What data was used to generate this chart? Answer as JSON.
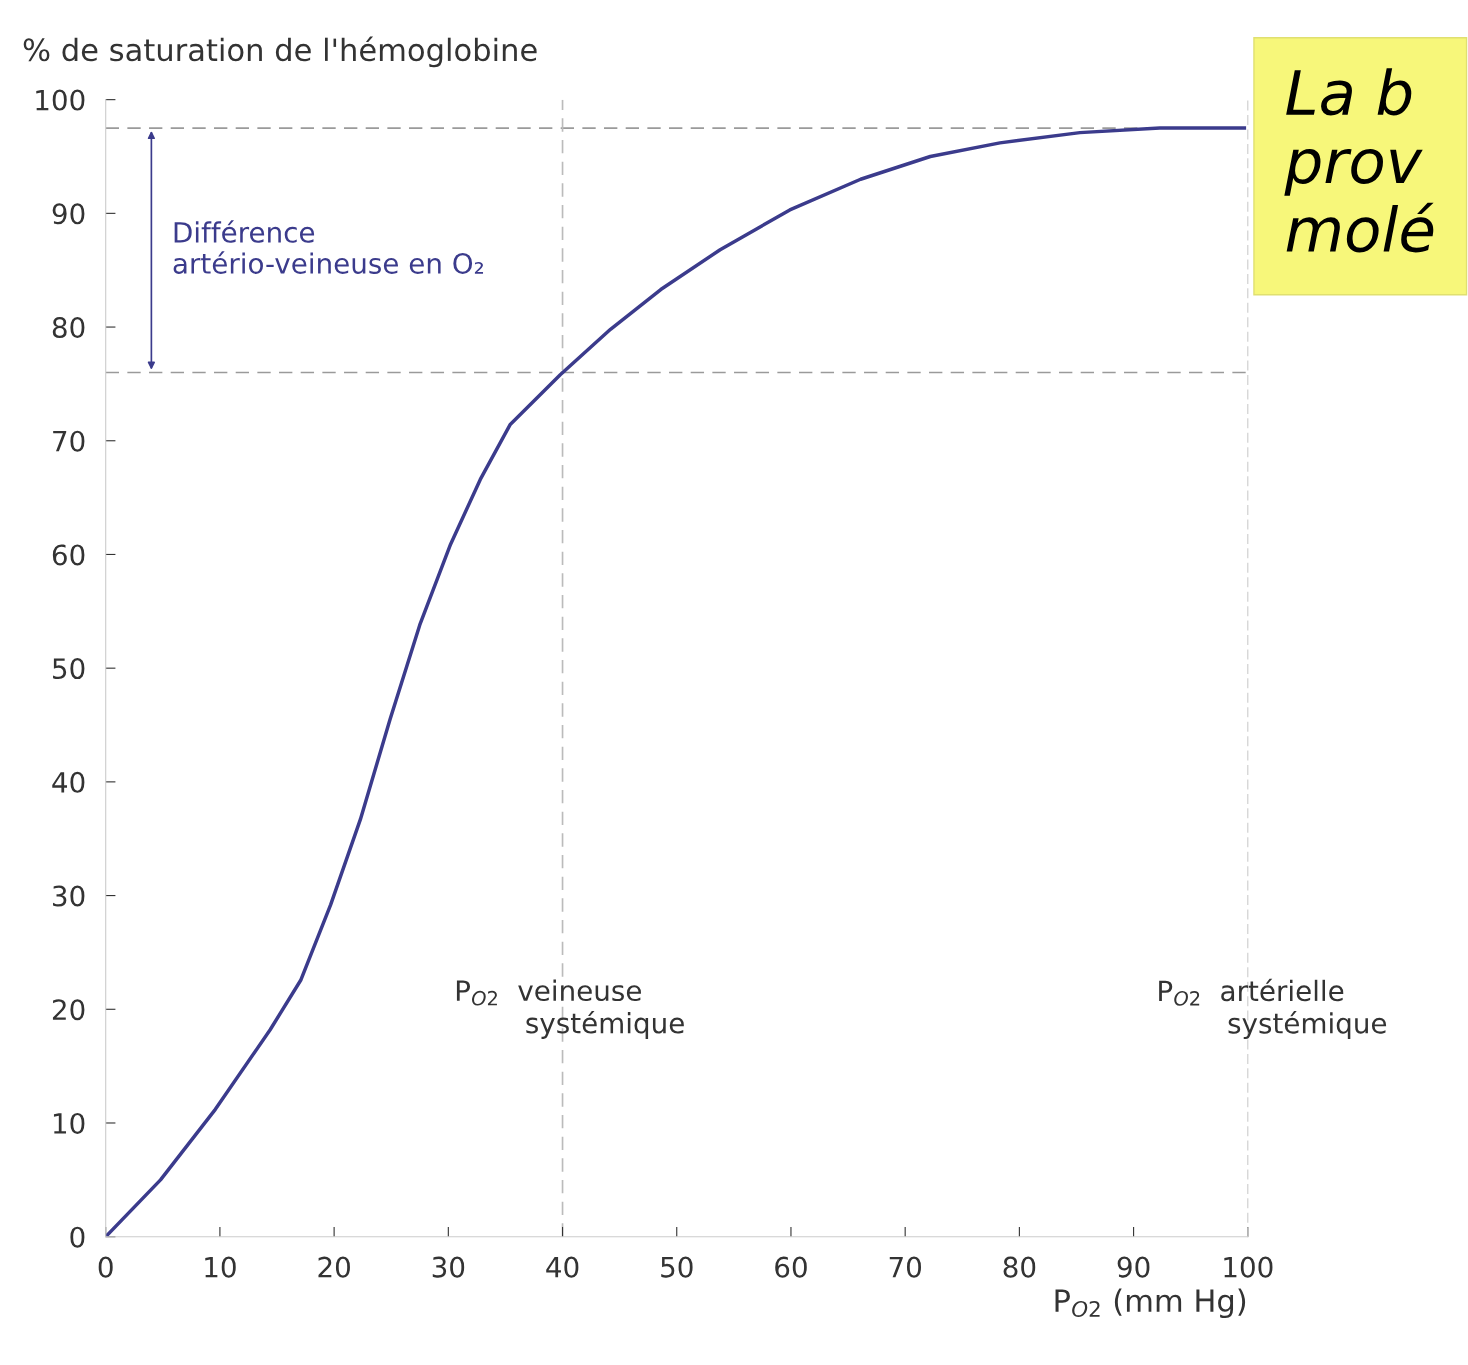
{
  "chart_data": {
    "type": "line",
    "ylabel": "% de saturation de l'hémoglobine",
    "xlabel": "P$_{O2}$ (mm Hg)",
    "x": [
      0,
      4.8,
      9.6,
      14.4,
      17.1,
      19.7,
      22.3,
      24.9,
      27.5,
      30.2,
      32.8,
      35.4,
      39.8,
      44.2,
      48.6,
      53.8,
      59.9,
      66.1,
      72.2,
      78.3,
      85.3,
      92.3,
      99.7
    ],
    "series": [
      {
        "color": "#3b3b8c",
        "values": [
          0,
          5.0,
          11.2,
          18.2,
          22.6,
          29.2,
          36.7,
          45.5,
          53.8,
          60.9,
          66.6,
          71.4,
          75.8,
          79.8,
          83.3,
          86.8,
          90.3,
          93.0,
          95.0,
          96.2,
          97.1,
          97.5,
          97.5
        ]
      }
    ],
    "xlim": [
      0,
      100
    ],
    "ylim": [
      0,
      100
    ],
    "xticks": [
      0,
      10,
      20,
      30,
      40,
      50,
      60,
      70,
      80,
      90,
      100
    ],
    "yticks": [
      0,
      10,
      20,
      30,
      40,
      50,
      60,
      70,
      80,
      90,
      100
    ],
    "grid": false,
    "marker": "none",
    "line_style": "solid",
    "ref_lines": [
      {
        "axis": "y",
        "value": 97.5,
        "color": "#9a9a9a",
        "line_style": "dashed"
      },
      {
        "axis": "y",
        "value": 76,
        "color": "#9a9a9a",
        "line_style": "dashed"
      },
      {
        "axis": "x",
        "value": 40,
        "color": "#bbbbbb",
        "line_style": "dashed"
      }
    ],
    "annotations": [
      "Différence\nartério-veineuse en O₂",
      {
        "text": "P$_{O2}$  veineuse\n        systémique",
        "x": 40,
        "y": 20
      },
      "P$_{O2}$  artérielle\n        systémique",
      "La b\nprov\nmolé"
    ]
  }
}
